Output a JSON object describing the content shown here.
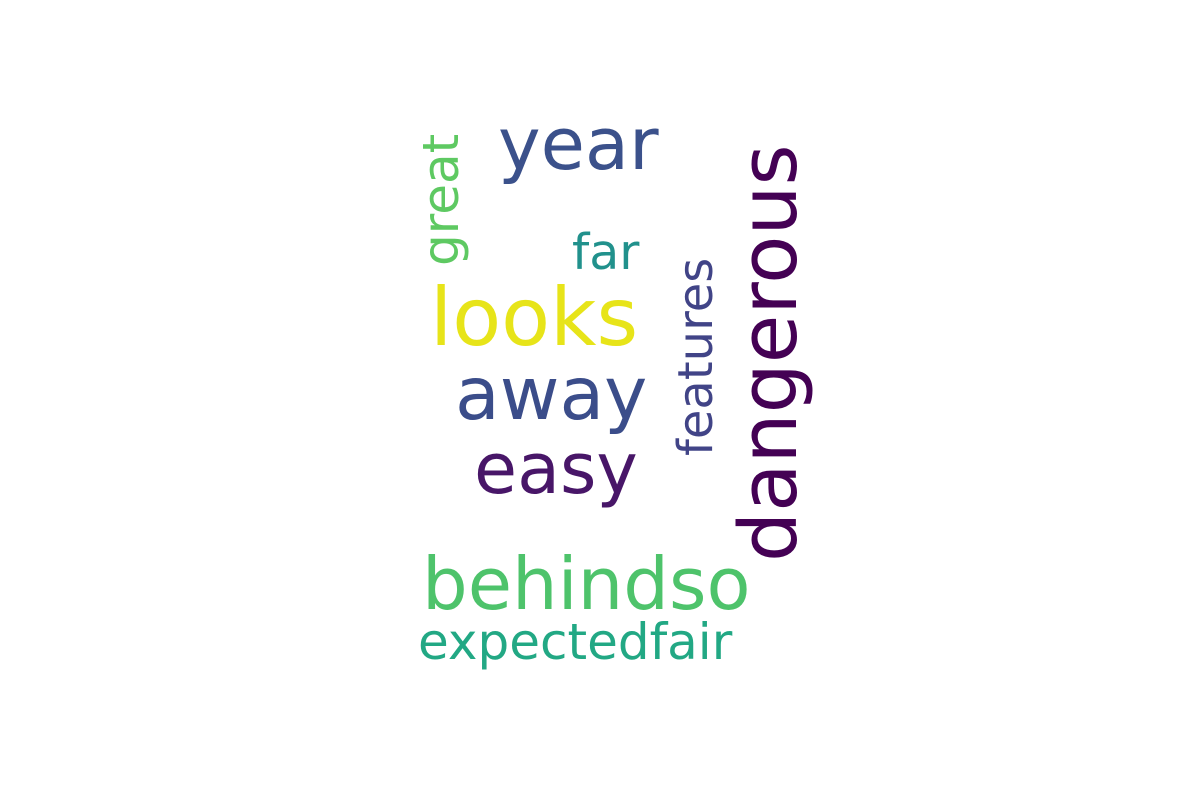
{
  "words": {
    "year": {
      "text": "year",
      "color": "#3b518b"
    },
    "dangerous": {
      "text": "dangerous",
      "color": "#440154"
    },
    "great": {
      "text": "great",
      "color": "#5ec962"
    },
    "far": {
      "text": "far",
      "color": "#21918c"
    },
    "looks": {
      "text": "looks",
      "color": "#e7e419"
    },
    "features": {
      "text": "features",
      "color": "#414487"
    },
    "away": {
      "text": "away",
      "color": "#3b4d8a"
    },
    "easy": {
      "text": "easy",
      "color": "#481668"
    },
    "behindso": {
      "text": "behindso",
      "color": "#4ec36b"
    },
    "expectedfair": {
      "text": "expectedfair",
      "color": "#22a884"
    }
  }
}
